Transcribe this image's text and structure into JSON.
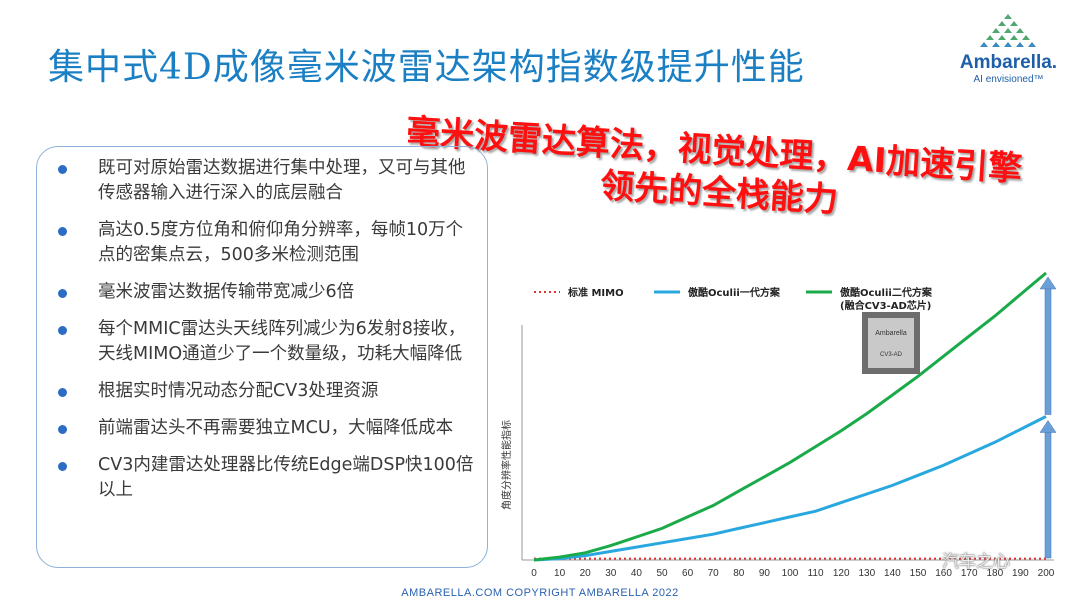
{
  "slide": {
    "title": "集中式4D成像毫米波雷达架构指数级提升性能",
    "slogan_line1": "毫米波雷达算法，视觉处理，AI加速引擎",
    "slogan_line2": "领先的全栈能力",
    "footer": "AMBARELLA.COM  COPYRIGHT AMBARELLA 2022",
    "watermark": "汽车之心"
  },
  "logo": {
    "name": "Ambarella.",
    "tagline": "AI envisioned™",
    "color": "#1f5fa8"
  },
  "bullets": [
    "既可对原始雷达数据进行集中处理，又可与其他传感器输入进行深入的底层融合",
    "高达0.5度方位角和俯仰角分辨率，每帧10万个点的密集点云，500多米检测范围",
    "毫米波雷达数据传输带宽减少6倍",
    "每个MMIC雷达头天线阵列减少为6发射8接收，天线MIMO通道少了一个数量级，功耗大幅降低",
    "根据实时情况动态分配CV3处理资源",
    "前端雷达头不再需要独立MCU，大幅降低成本",
    "CV3内建雷达处理器比传统Edge端DSP快100倍以上"
  ],
  "chip": {
    "brand": "Ambarella",
    "model": "CV3-AD"
  },
  "chart_data": {
    "type": "line",
    "ylabel": "角度分辨率性能指标",
    "xlabel": "",
    "x": [
      0,
      10,
      20,
      30,
      40,
      50,
      60,
      70,
      80,
      90,
      100,
      110,
      120,
      130,
      140,
      150,
      160,
      170,
      180,
      190,
      200
    ],
    "xticks": [
      "0",
      "10",
      "20",
      "30",
      "40",
      "50",
      "60",
      "70",
      "80",
      "90",
      "100",
      "110",
      "120",
      "130",
      "140",
      "150",
      "160",
      "170",
      "180",
      "190",
      "200"
    ],
    "ylim": [
      0,
      100
    ],
    "grid": false,
    "legend_position": "top",
    "series": [
      {
        "name": "标准 MIMO",
        "color": "#e03030",
        "style": "dotted",
        "values": [
          0.5,
          0.5,
          0.5,
          0.5,
          0.5,
          0.5,
          0.5,
          0.5,
          0.5,
          0.5,
          0.5,
          0.5,
          0.5,
          0.5,
          0.5,
          0.5,
          0.5,
          0.5,
          0.5,
          0.5,
          0.5
        ]
      },
      {
        "name": "傲酷Oculii一代方案",
        "color": "#29a8e0",
        "style": "solid",
        "values": [
          0,
          0.5,
          1.5,
          3,
          4.5,
          6,
          7.5,
          9,
          11,
          13,
          15,
          17,
          20,
          23,
          26,
          29.5,
          33,
          37,
          41,
          45.5,
          50
        ]
      },
      {
        "name": "傲酷Oculii二代方案\n(融合CV3-AD芯片)",
        "color": "#1aaa4a",
        "style": "solid",
        "values": [
          0,
          1,
          2.5,
          5,
          8,
          11,
          15,
          19,
          24,
          29,
          34,
          39.5,
          45,
          51,
          57.5,
          64,
          71,
          78,
          85,
          92.5,
          100
        ]
      }
    ]
  }
}
